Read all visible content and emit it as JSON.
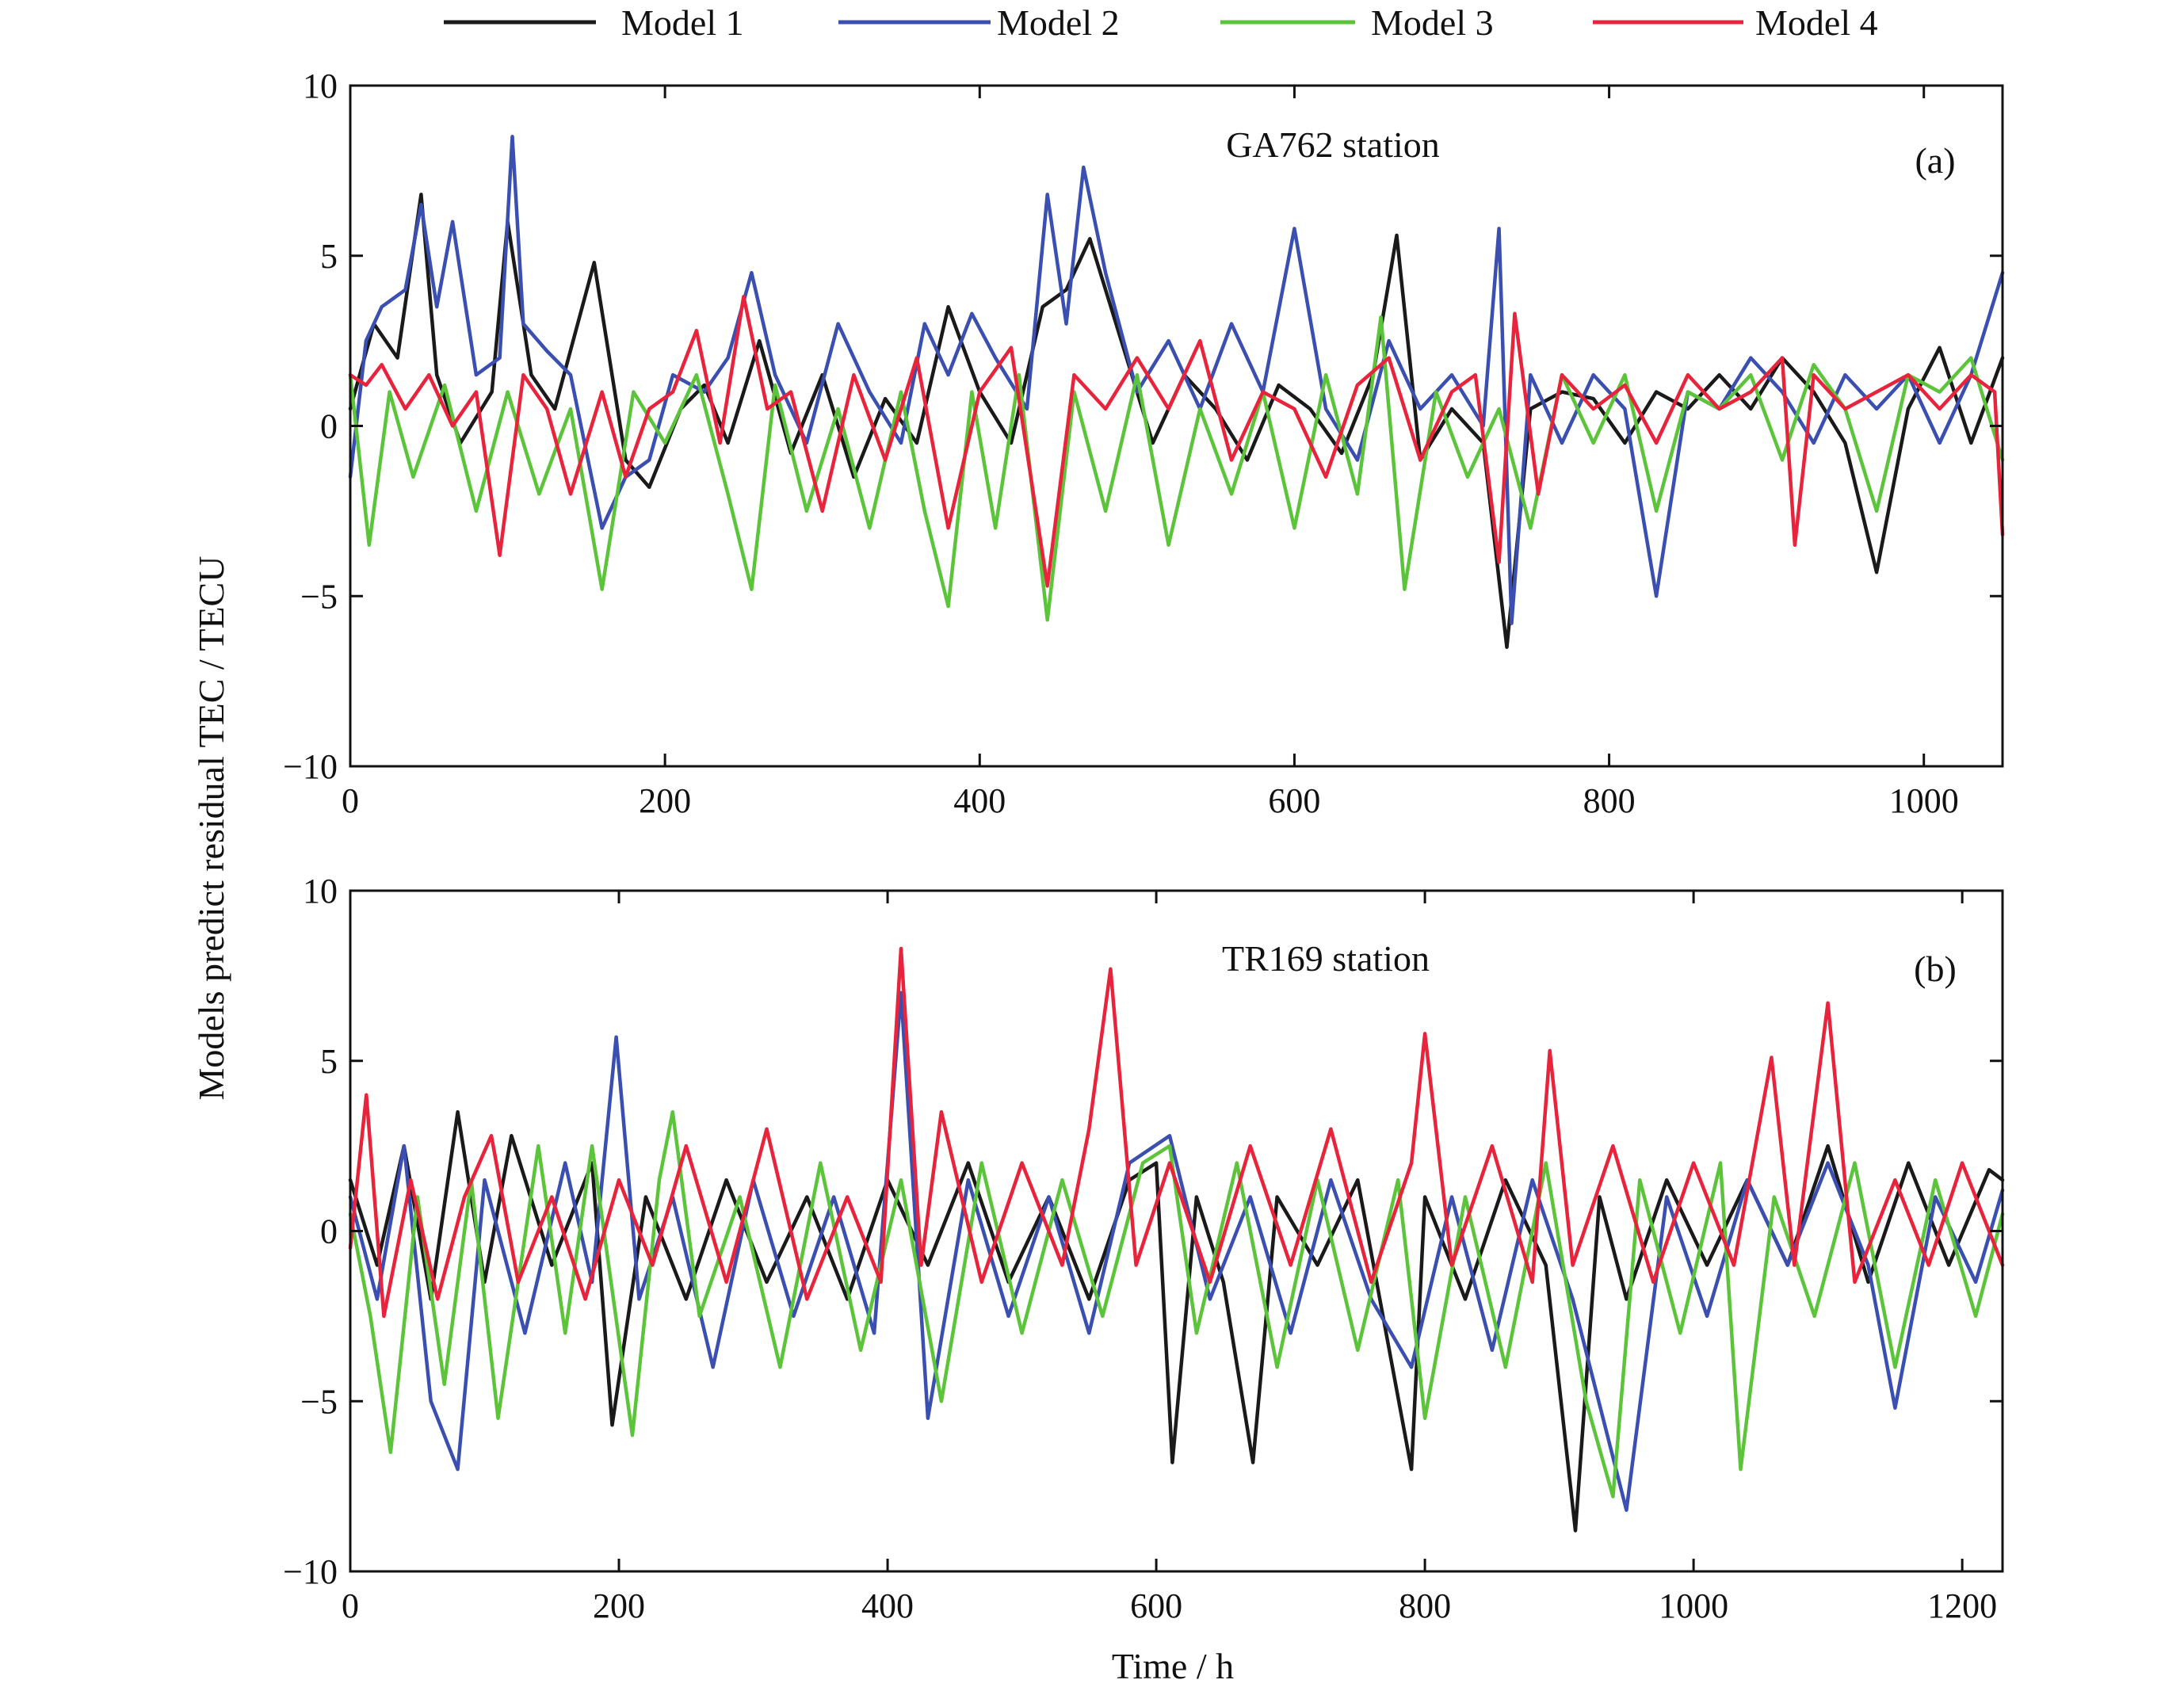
{
  "figure": {
    "ylabel": "Models predict residual TEC / TECU",
    "xlabel": "Time / h",
    "legend": {
      "placement": "top-center",
      "entries": [
        {
          "name": "Model 1",
          "color": "#1a1a1a"
        },
        {
          "name": "Model 2",
          "color": "#3b4fb0"
        },
        {
          "name": "Model 3",
          "color": "#5cc43a"
        },
        {
          "name": "Model 4",
          "color": "#e8243c"
        }
      ]
    }
  },
  "chart_data": [
    {
      "type": "line",
      "title": "GA762 station",
      "panel_label": "(a)",
      "xlim": [
        0,
        1050
      ],
      "ylim": [
        -10,
        10
      ],
      "xticks": [
        0,
        200,
        400,
        600,
        800,
        1000
      ],
      "yticks": [
        -10,
        -5,
        0,
        5,
        10
      ],
      "ytick_labels": [
        "−10",
        "−5",
        "0",
        "5",
        "10"
      ],
      "grid": false,
      "series": [
        {
          "name": "Model 1",
          "color": "#1a1a1a",
          "x": [
            0,
            15,
            30,
            45,
            55,
            70,
            90,
            100,
            115,
            130,
            155,
            175,
            190,
            210,
            225,
            240,
            260,
            280,
            300,
            320,
            340,
            360,
            380,
            400,
            420,
            440,
            455,
            470,
            490,
            510,
            530,
            550,
            570,
            590,
            610,
            630,
            650,
            665,
            680,
            700,
            720,
            735,
            750,
            770,
            790,
            810,
            830,
            850,
            870,
            890,
            910,
            930,
            950,
            970,
            990,
            1010,
            1030,
            1050
          ],
          "y": [
            0.5,
            3.0,
            2.0,
            6.8,
            1.5,
            -0.5,
            1.0,
            6.0,
            1.5,
            0.5,
            4.8,
            -1.0,
            -1.8,
            0.5,
            1.2,
            -0.5,
            2.5,
            -0.8,
            1.5,
            -1.5,
            0.8,
            -0.5,
            3.5,
            1.0,
            -0.5,
            3.5,
            4.0,
            5.5,
            2.5,
            -0.5,
            1.5,
            0.5,
            -1.0,
            1.2,
            0.5,
            -0.8,
            1.5,
            5.6,
            -1.0,
            0.5,
            -0.5,
            -6.5,
            0.5,
            1.0,
            0.8,
            -0.5,
            1.0,
            0.5,
            1.5,
            0.5,
            2.0,
            1.0,
            -0.5,
            -4.3,
            0.5,
            2.3,
            -0.5,
            2.0
          ]
        },
        {
          "name": "Model 2",
          "color": "#3b4fb0",
          "x": [
            0,
            10,
            20,
            35,
            45,
            55,
            65,
            80,
            95,
            103,
            110,
            125,
            140,
            160,
            175,
            190,
            205,
            225,
            240,
            255,
            270,
            290,
            310,
            330,
            350,
            365,
            380,
            395,
            410,
            430,
            443,
            455,
            466,
            480,
            500,
            520,
            540,
            560,
            580,
            600,
            620,
            640,
            660,
            680,
            700,
            720,
            730,
            738,
            750,
            770,
            790,
            810,
            830,
            850,
            870,
            890,
            910,
            930,
            950,
            970,
            990,
            1010,
            1030,
            1050
          ],
          "y": [
            -1.5,
            2.5,
            3.5,
            4.0,
            6.5,
            3.5,
            6.0,
            1.5,
            2.0,
            8.5,
            3.0,
            2.2,
            1.5,
            -3.0,
            -1.5,
            -1.0,
            1.5,
            1.0,
            2.0,
            4.5,
            1.5,
            -0.5,
            3.0,
            1.0,
            -0.5,
            3.0,
            1.5,
            3.3,
            2.0,
            0.5,
            6.8,
            3.0,
            7.6,
            4.5,
            1.0,
            2.5,
            0.5,
            3.0,
            1.0,
            5.8,
            0.5,
            -1.0,
            2.5,
            0.5,
            1.5,
            0.0,
            5.8,
            -5.8,
            1.5,
            -0.5,
            1.5,
            0.5,
            -5.0,
            1.0,
            0.5,
            2.0,
            1.0,
            -0.5,
            1.5,
            0.5,
            1.5,
            -0.5,
            1.5,
            4.5
          ]
        },
        {
          "name": "Model 3",
          "color": "#5cc43a",
          "x": [
            0,
            12,
            25,
            40,
            60,
            80,
            100,
            120,
            140,
            160,
            180,
            200,
            220,
            240,
            255,
            270,
            290,
            310,
            330,
            350,
            365,
            380,
            395,
            410,
            425,
            443,
            460,
            480,
            500,
            520,
            540,
            560,
            580,
            600,
            620,
            640,
            655,
            670,
            690,
            710,
            730,
            750,
            770,
            790,
            810,
            830,
            850,
            870,
            890,
            910,
            930,
            950,
            970,
            990,
            1010,
            1030,
            1050
          ],
          "y": [
            1.5,
            -3.5,
            1.0,
            -1.5,
            1.2,
            -2.5,
            1.0,
            -2.0,
            0.5,
            -4.8,
            1.0,
            -0.5,
            1.5,
            -2.0,
            -4.8,
            1.2,
            -2.5,
            0.5,
            -3.0,
            1.0,
            -2.5,
            -5.3,
            1.0,
            -3.0,
            1.5,
            -5.7,
            1.0,
            -2.5,
            1.5,
            -3.5,
            0.5,
            -2.0,
            1.0,
            -3.0,
            1.5,
            -2.0,
            3.2,
            -4.8,
            1.0,
            -1.5,
            0.5,
            -3.0,
            1.5,
            -0.5,
            1.5,
            -2.5,
            1.0,
            0.5,
            1.5,
            -1.0,
            1.8,
            0.5,
            -2.5,
            1.5,
            1.0,
            2.0,
            -1.0
          ]
        },
        {
          "name": "Model 4",
          "color": "#e8243c",
          "x": [
            0,
            10,
            20,
            35,
            50,
            65,
            80,
            95,
            110,
            125,
            140,
            160,
            175,
            190,
            205,
            220,
            235,
            250,
            265,
            280,
            300,
            320,
            340,
            360,
            380,
            400,
            420,
            443,
            460,
            480,
            500,
            520,
            540,
            560,
            580,
            600,
            620,
            640,
            660,
            680,
            700,
            715,
            730,
            740,
            755,
            770,
            790,
            810,
            830,
            850,
            870,
            890,
            910,
            918,
            930,
            950,
            970,
            990,
            1010,
            1030,
            1045,
            1050
          ],
          "y": [
            1.5,
            1.2,
            1.8,
            0.5,
            1.5,
            0.0,
            1.0,
            -3.8,
            1.5,
            0.5,
            -2.0,
            1.0,
            -1.5,
            0.5,
            1.0,
            2.8,
            -0.5,
            3.8,
            0.5,
            1.0,
            -2.5,
            1.5,
            -1.0,
            2.0,
            -3.0,
            1.0,
            2.3,
            -4.7,
            1.5,
            0.5,
            2.0,
            0.5,
            2.5,
            -1.0,
            1.0,
            0.5,
            -1.5,
            1.2,
            2.0,
            -1.0,
            1.0,
            1.5,
            -4.0,
            3.3,
            -2.0,
            1.5,
            0.5,
            1.2,
            -0.5,
            1.5,
            0.5,
            1.0,
            2.0,
            -3.5,
            1.5,
            0.5,
            1.0,
            1.5,
            0.5,
            1.5,
            1.0,
            -3.2
          ]
        }
      ]
    },
    {
      "type": "line",
      "title": "TR169 station",
      "panel_label": "(b)",
      "xlim": [
        0,
        1230
      ],
      "ylim": [
        -10,
        10
      ],
      "xticks": [
        0,
        200,
        400,
        600,
        800,
        1000,
        1200
      ],
      "yticks": [
        -10,
        -5,
        0,
        5,
        10
      ],
      "ytick_labels": [
        "−10",
        "−5",
        "0",
        "5",
        "10"
      ],
      "grid": false,
      "series": [
        {
          "name": "Model 1",
          "color": "#1a1a1a",
          "x": [
            0,
            20,
            40,
            60,
            80,
            100,
            120,
            150,
            180,
            195,
            220,
            250,
            280,
            310,
            340,
            370,
            400,
            430,
            460,
            490,
            520,
            550,
            580,
            600,
            612,
            630,
            650,
            672,
            690,
            720,
            750,
            790,
            800,
            830,
            860,
            890,
            912,
            930,
            950,
            980,
            1010,
            1040,
            1070,
            1100,
            1130,
            1160,
            1190,
            1220,
            1230
          ],
          "y": [
            1.5,
            -1.0,
            2.5,
            -2.0,
            3.5,
            -1.5,
            2.8,
            -1.0,
            2.0,
            -5.7,
            1.0,
            -2.0,
            1.5,
            -1.5,
            1.0,
            -2.0,
            1.5,
            -1.0,
            2.0,
            -1.5,
            1.0,
            -2.0,
            1.5,
            2.0,
            -6.8,
            1.0,
            -1.5,
            -6.8,
            1.0,
            -1.0,
            1.5,
            -7.0,
            1.0,
            -2.0,
            1.5,
            -1.0,
            -8.8,
            1.0,
            -2.0,
            1.5,
            -1.0,
            1.5,
            -1.0,
            2.5,
            -1.5,
            2.0,
            -1.0,
            1.8,
            1.5
          ]
        },
        {
          "name": "Model 2",
          "color": "#3b4fb0",
          "x": [
            0,
            20,
            40,
            60,
            80,
            100,
            130,
            160,
            180,
            198,
            215,
            240,
            270,
            300,
            330,
            360,
            390,
            410,
            430,
            460,
            490,
            520,
            550,
            580,
            610,
            640,
            670,
            700,
            730,
            760,
            790,
            820,
            850,
            880,
            910,
            950,
            980,
            1010,
            1040,
            1070,
            1100,
            1130,
            1150,
            1180,
            1210,
            1230
          ],
          "y": [
            1.0,
            -2.0,
            2.5,
            -5.0,
            -7.0,
            1.5,
            -3.0,
            2.0,
            -1.5,
            5.7,
            -2.0,
            1.0,
            -4.0,
            1.5,
            -2.5,
            1.0,
            -3.0,
            7.0,
            -5.5,
            1.5,
            -2.5,
            1.0,
            -3.0,
            2.0,
            2.8,
            -2.0,
            1.0,
            -3.0,
            1.5,
            -2.0,
            -4.0,
            1.0,
            -3.5,
            1.5,
            -2.0,
            -8.2,
            1.0,
            -2.5,
            1.5,
            -1.0,
            2.0,
            -1.0,
            -5.2,
            1.0,
            -1.5,
            1.2
          ]
        },
        {
          "name": "Model 3",
          "color": "#5cc43a",
          "x": [
            0,
            15,
            30,
            50,
            70,
            90,
            110,
            140,
            160,
            180,
            210,
            230,
            240,
            260,
            290,
            320,
            350,
            380,
            410,
            440,
            470,
            500,
            530,
            560,
            590,
            610,
            630,
            660,
            690,
            720,
            750,
            780,
            800,
            830,
            860,
            890,
            920,
            940,
            960,
            990,
            1020,
            1035,
            1060,
            1090,
            1120,
            1150,
            1180,
            1210,
            1230
          ],
          "y": [
            0.5,
            -2.5,
            -6.5,
            1.0,
            -4.5,
            1.5,
            -5.5,
            2.5,
            -3.0,
            2.5,
            -6.0,
            1.5,
            3.5,
            -2.5,
            1.0,
            -4.0,
            2.0,
            -3.5,
            1.5,
            -5.0,
            2.0,
            -3.0,
            1.5,
            -2.5,
            2.0,
            2.5,
            -3.0,
            2.0,
            -4.0,
            1.5,
            -3.5,
            1.5,
            -5.5,
            1.0,
            -4.0,
            2.0,
            -5.0,
            -7.8,
            1.5,
            -3.0,
            2.0,
            -7.0,
            1.0,
            -2.5,
            2.0,
            -4.0,
            1.5,
            -2.5,
            0.5
          ]
        },
        {
          "name": "Model 4",
          "color": "#e8243c",
          "x": [
            0,
            12,
            25,
            45,
            65,
            85,
            105,
            125,
            150,
            175,
            200,
            225,
            250,
            280,
            310,
            340,
            370,
            395,
            410,
            425,
            440,
            470,
            500,
            530,
            550,
            566,
            585,
            610,
            640,
            670,
            700,
            730,
            760,
            790,
            800,
            820,
            850,
            880,
            893,
            910,
            940,
            970,
            1000,
            1030,
            1058,
            1075,
            1100,
            1120,
            1150,
            1175,
            1200,
            1230
          ],
          "y": [
            -0.5,
            4.0,
            -2.5,
            1.5,
            -2.0,
            1.0,
            2.8,
            -1.5,
            1.0,
            -2.0,
            1.5,
            -1.0,
            2.5,
            -1.5,
            3.0,
            -2.0,
            1.0,
            -1.5,
            8.3,
            -1.0,
            3.5,
            -1.5,
            2.0,
            -1.0,
            3.0,
            7.7,
            -1.0,
            2.0,
            -1.5,
            2.5,
            -1.0,
            3.0,
            -1.5,
            2.0,
            5.8,
            -1.0,
            2.5,
            -1.5,
            5.3,
            -1.0,
            2.5,
            -1.5,
            2.0,
            -1.0,
            5.1,
            -1.0,
            6.7,
            -1.5,
            1.5,
            -1.0,
            2.0,
            -1.0
          ]
        }
      ]
    }
  ]
}
